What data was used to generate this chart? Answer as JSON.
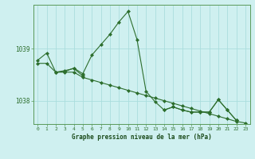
{
  "title": "Graphe pression niveau de la mer (hPa)",
  "background_color": "#cff0f0",
  "grid_color": "#aadddd",
  "line_color": "#2d6e2d",
  "marker_color": "#2d6e2d",
  "x_ticks": [
    0,
    1,
    2,
    3,
    4,
    5,
    6,
    7,
    8,
    9,
    10,
    11,
    12,
    13,
    14,
    15,
    16,
    17,
    18,
    19,
    20,
    21,
    22,
    23
  ],
  "ylim": [
    1037.55,
    1039.85
  ],
  "yticks": [
    1038,
    1039
  ],
  "series1": [
    1038.78,
    1038.92,
    1038.55,
    1038.56,
    1038.63,
    1038.52,
    1038.88,
    1039.08,
    1039.28,
    1039.52,
    1039.72,
    1039.18,
    1038.18,
    1037.98,
    1037.82,
    1037.88,
    1037.82,
    1037.78,
    1037.78,
    1037.78,
    1038.02,
    1037.82,
    1037.62,
    null
  ],
  "series2": [
    null,
    null,
    1038.55,
    1038.58,
    1038.62,
    1038.48,
    null,
    null,
    null,
    null,
    null,
    null,
    null,
    null,
    1037.82,
    1037.88,
    1037.82,
    1037.78,
    1037.78,
    1037.78,
    1038.02,
    1037.82,
    1037.62,
    null
  ],
  "series3": [
    1038.72,
    1038.72,
    1038.55,
    1038.55,
    1038.55,
    1038.45,
    1038.4,
    1038.35,
    1038.3,
    1038.25,
    1038.2,
    1038.15,
    1038.1,
    1038.05,
    1038.0,
    1037.95,
    1037.9,
    1037.85,
    1037.8,
    1037.75,
    1037.7,
    1037.65,
    1037.6,
    1037.57
  ]
}
